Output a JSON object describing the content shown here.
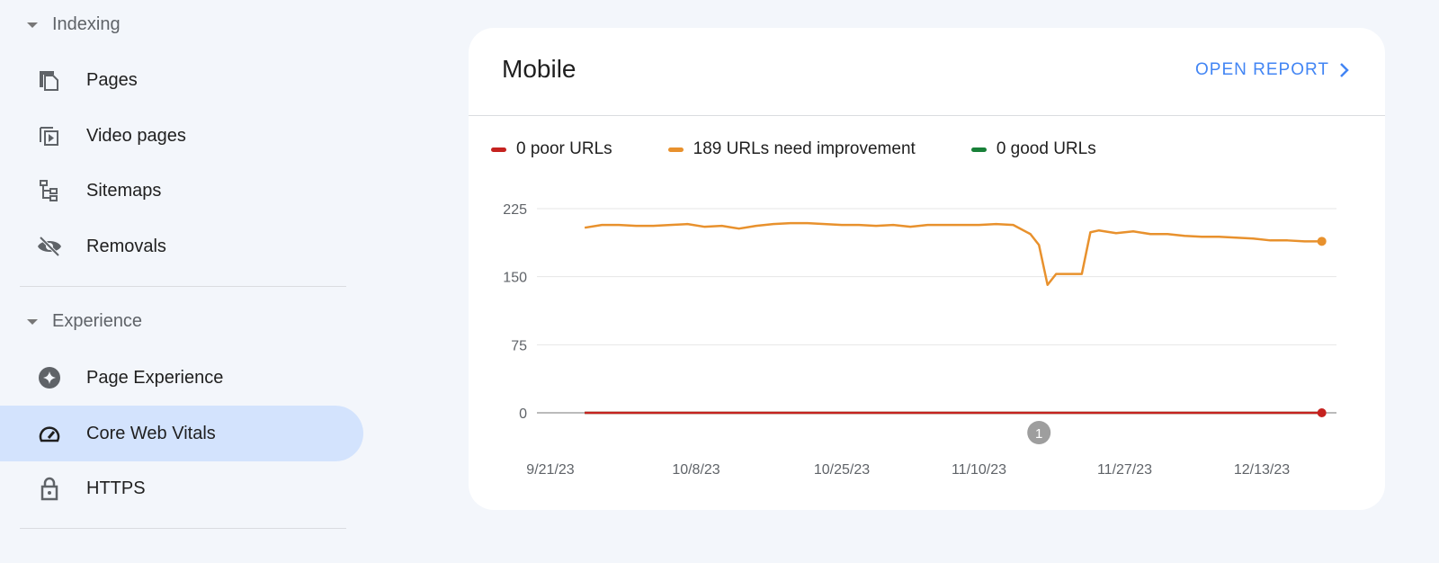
{
  "sidebar": {
    "sections": [
      {
        "label": "Indexing"
      },
      {
        "label": "Experience"
      }
    ],
    "items": [
      {
        "label": "Pages",
        "icon": "pages-icon"
      },
      {
        "label": "Video pages",
        "icon": "video-pages-icon"
      },
      {
        "label": "Sitemaps",
        "icon": "sitemap-icon"
      },
      {
        "label": "Removals",
        "icon": "eye-off-icon"
      },
      {
        "label": "Page Experience",
        "icon": "sparkle-icon"
      },
      {
        "label": "Core Web Vitals",
        "icon": "speedometer-icon",
        "active": true
      },
      {
        "label": "HTTPS",
        "icon": "lock-icon"
      }
    ]
  },
  "card": {
    "title": "Mobile",
    "open_report": "OPEN REPORT"
  },
  "chart_data": {
    "type": "line",
    "title": "",
    "xlabel": "",
    "ylabel": "",
    "ylim": [
      0,
      225
    ],
    "yticks": [
      "0",
      "75",
      "150",
      "225"
    ],
    "xticks": [
      "9/21/23",
      "10/8/23",
      "10/25/23",
      "11/10/23",
      "11/27/23",
      "12/13/23"
    ],
    "grid": true,
    "legend_position": "top",
    "annotation": {
      "label": "1",
      "date": "2023-11-17"
    },
    "series": [
      {
        "name": "0 poor URLs",
        "color": "#c5221f",
        "constant": 0
      },
      {
        "name": "189 URLs need improvement",
        "color": "#e8912d",
        "points": [
          [
            "2023-09-25",
            204
          ],
          [
            "2023-09-27",
            207
          ],
          [
            "2023-09-29",
            207
          ],
          [
            "2023-10-01",
            206
          ],
          [
            "2023-10-03",
            206
          ],
          [
            "2023-10-05",
            207
          ],
          [
            "2023-10-07",
            208
          ],
          [
            "2023-10-09",
            205
          ],
          [
            "2023-10-11",
            206
          ],
          [
            "2023-10-13",
            203
          ],
          [
            "2023-10-15",
            206
          ],
          [
            "2023-10-17",
            208
          ],
          [
            "2023-10-19",
            209
          ],
          [
            "2023-10-21",
            209
          ],
          [
            "2023-10-23",
            208
          ],
          [
            "2023-10-25",
            207
          ],
          [
            "2023-10-27",
            207
          ],
          [
            "2023-10-29",
            206
          ],
          [
            "2023-10-31",
            207
          ],
          [
            "2023-11-02",
            205
          ],
          [
            "2023-11-04",
            207
          ],
          [
            "2023-11-06",
            207
          ],
          [
            "2023-11-08",
            207
          ],
          [
            "2023-11-10",
            207
          ],
          [
            "2023-11-12",
            208
          ],
          [
            "2023-11-14",
            207
          ],
          [
            "2023-11-16",
            197
          ],
          [
            "2023-11-17",
            185
          ],
          [
            "2023-11-18",
            141
          ],
          [
            "2023-11-19",
            153
          ],
          [
            "2023-11-20",
            153
          ],
          [
            "2023-11-21",
            153
          ],
          [
            "2023-11-22",
            153
          ],
          [
            "2023-11-23",
            199
          ],
          [
            "2023-11-24",
            201
          ],
          [
            "2023-11-26",
            198
          ],
          [
            "2023-11-28",
            200
          ],
          [
            "2023-11-30",
            197
          ],
          [
            "2023-12-02",
            197
          ],
          [
            "2023-12-04",
            195
          ],
          [
            "2023-12-06",
            194
          ],
          [
            "2023-12-08",
            194
          ],
          [
            "2023-12-10",
            193
          ],
          [
            "2023-12-12",
            192
          ],
          [
            "2023-12-14",
            190
          ],
          [
            "2023-12-16",
            190
          ],
          [
            "2023-12-18",
            189
          ],
          [
            "2023-12-20",
            189
          ]
        ]
      },
      {
        "name": "0 good URLs",
        "color": "#188038",
        "constant": 0
      }
    ]
  }
}
